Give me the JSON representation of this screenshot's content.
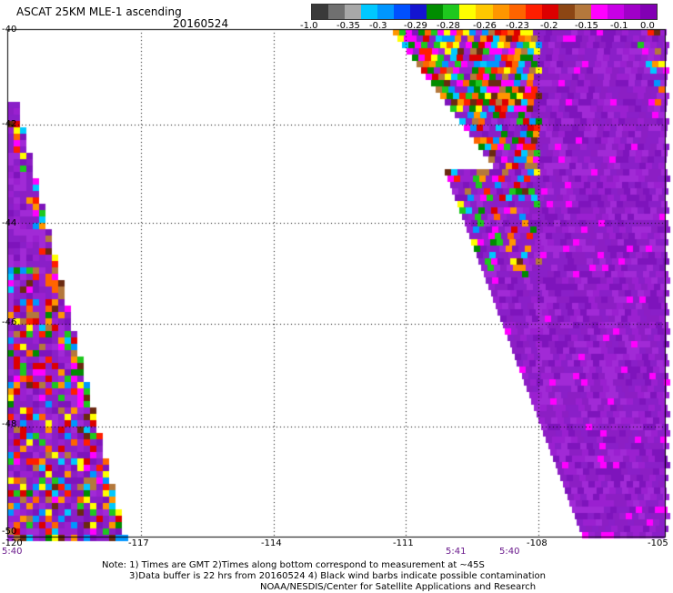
{
  "header": {
    "title": "ASCAT 25KM MLE-1 ascending",
    "date": "20160524"
  },
  "colorbar": {
    "colors": [
      "#3a3a3a",
      "#707070",
      "#a8a8a8",
      "#00c8ff",
      "#0096ff",
      "#0050ff",
      "#1414d0",
      "#008c00",
      "#1ec81e",
      "#ffff00",
      "#ffc800",
      "#ff9600",
      "#ff6400",
      "#ff1e00",
      "#dc0000",
      "#8c4614",
      "#b4783c",
      "#ff00ff",
      "#c800e6",
      "#a000c8",
      "#8200b4"
    ],
    "labels": [
      "-1.0",
      "-0.35",
      "-0.3",
      "-0.29",
      "-0.28",
      "-0.26",
      "-0.23",
      "-0.2",
      "-0.15",
      "-0.1",
      "0.0"
    ]
  },
  "map": {
    "lat_labels": [
      "-40",
      "-42",
      "-44",
      "-46",
      "-48",
      "-50"
    ],
    "lon_labels": [
      "-120",
      "-117",
      "-114",
      "-111",
      "-108",
      "-105"
    ],
    "time_labels": [
      "5:40",
      "5:41",
      "5:40"
    ],
    "grid": true
  },
  "notes": [
    "Note: 1) Times are GMT 2)Times along bottom correspond to measurement at ~45S",
    "3)Data buffer is 22 hrs from 20160524 4) Black wind barbs indicate possible contamination",
    "NOAA/NESDIS/Center for Satellite Applications and Research"
  ]
}
